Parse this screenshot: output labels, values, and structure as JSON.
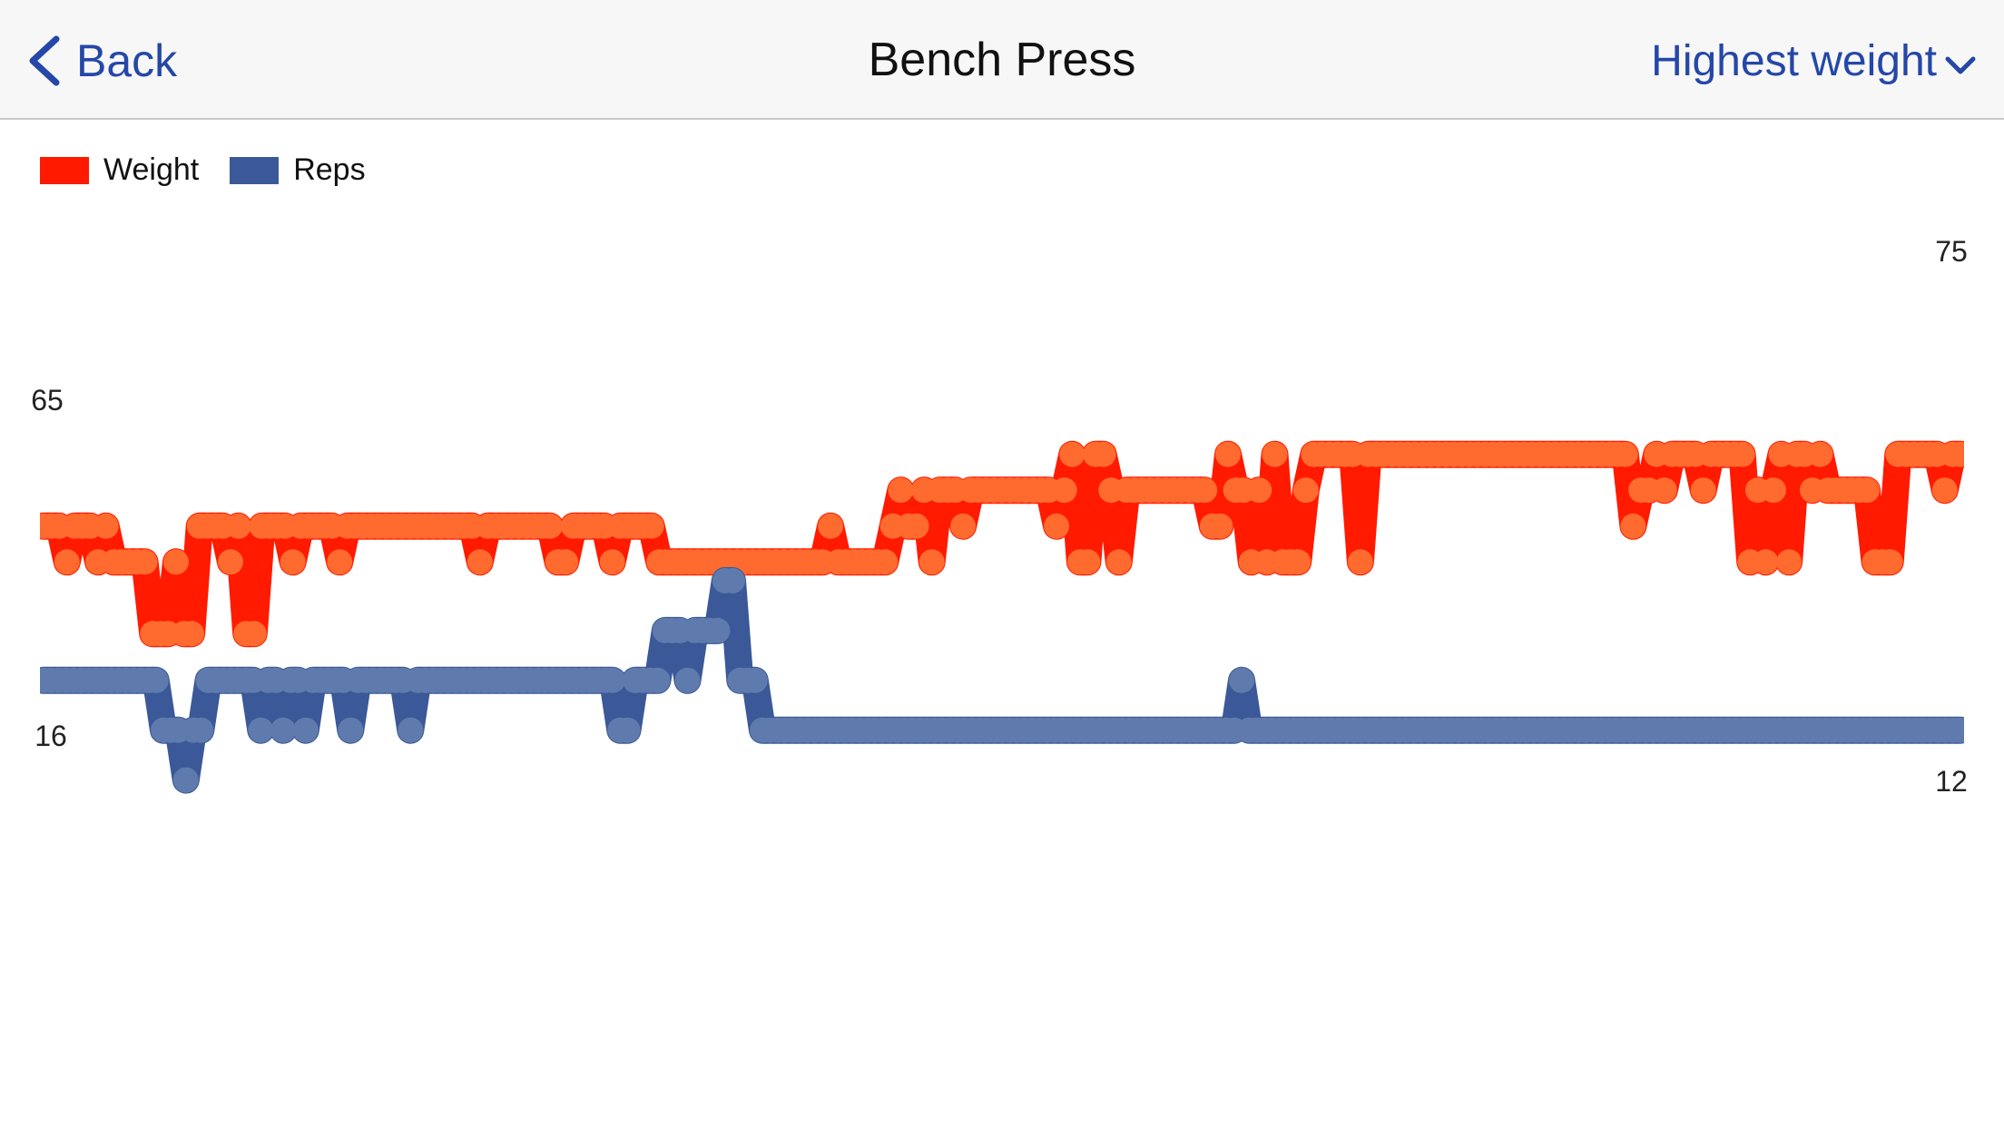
{
  "nav": {
    "back_label": "Back",
    "title": "Bench Press",
    "metric_label": "Highest weight"
  },
  "colors": {
    "accent": "#2547a8",
    "weight_fill": "#ff1a00",
    "weight_point": "#ff6a2e",
    "reps_fill": "#3b5998",
    "reps_point": "#5f7bad"
  },
  "chart_data": {
    "type": "area",
    "legend": [
      "Weight",
      "Reps"
    ],
    "legend_position": "top-left",
    "grid": false,
    "series": [
      {
        "name": "Weight",
        "axis_labels": [
          "65",
          "75"
        ],
        "ylim": [
          55,
          76
        ],
        "values": [
          65,
          65,
          65,
          64,
          65,
          65,
          65,
          64,
          65,
          64,
          64,
          64,
          64,
          64,
          62,
          62,
          62,
          64,
          62,
          62,
          65,
          65,
          65,
          65,
          64,
          65,
          62,
          62,
          65,
          65,
          65,
          65,
          64,
          65,
          65,
          65,
          65,
          65,
          64,
          65,
          65,
          65,
          65,
          65,
          65,
          65,
          65,
          65,
          65,
          65,
          65,
          65,
          65,
          65,
          65,
          65,
          64,
          65,
          65,
          65,
          65,
          65,
          65,
          65,
          65,
          65,
          64,
          64,
          65,
          65,
          65,
          65,
          65,
          64,
          65,
          65,
          65,
          65,
          65,
          64,
          64,
          64,
          64,
          64,
          64,
          64,
          64,
          64,
          64,
          64,
          64,
          64,
          64,
          64,
          64,
          64,
          64,
          64,
          64,
          64,
          64,
          65,
          64,
          64,
          64,
          64,
          64,
          64,
          64,
          65,
          66,
          65,
          65,
          66,
          64,
          66,
          66,
          66,
          65,
          66,
          66,
          66,
          66,
          66,
          66,
          66,
          66,
          66,
          66,
          66,
          65,
          66,
          67,
          64,
          64,
          67,
          67,
          66,
          64,
          66,
          66,
          66,
          66,
          66,
          66,
          66,
          66,
          66,
          66,
          66,
          65,
          65,
          67,
          66,
          66,
          64,
          66,
          64,
          67,
          64,
          64,
          64,
          66,
          67,
          67,
          67,
          67,
          67,
          67,
          64,
          67,
          67,
          67,
          67,
          67,
          67,
          67,
          67,
          67,
          67,
          67,
          67,
          67,
          67,
          67,
          67,
          67,
          67,
          67,
          67,
          67,
          67,
          67,
          67,
          67,
          67,
          67,
          67,
          67,
          67,
          67,
          67,
          67,
          67,
          65,
          66,
          66,
          67,
          66,
          67,
          67,
          67,
          67,
          66,
          67,
          67,
          67,
          67,
          67,
          64,
          66,
          64,
          66,
          67,
          64,
          67,
          67,
          66,
          67,
          66,
          66,
          66,
          66,
          66,
          66,
          64,
          64,
          64,
          67,
          67,
          67,
          67,
          67,
          67,
          66,
          67,
          67
        ]
      },
      {
        "name": "Reps",
        "axis_labels": [
          "16",
          "12"
        ],
        "ylim": [
          8,
          17
        ],
        "values": [
          15,
          15,
          15,
          15,
          15,
          15,
          15,
          15,
          15,
          15,
          15,
          15,
          15,
          15,
          15,
          15,
          14,
          14,
          14,
          13,
          14,
          14,
          15,
          15,
          15,
          15,
          15,
          15,
          15,
          14,
          15,
          15,
          14,
          15,
          15,
          14,
          15,
          15,
          15,
          15,
          15,
          14,
          15,
          15,
          15,
          15,
          15,
          15,
          15,
          14,
          15,
          15,
          15,
          15,
          15,
          15,
          15,
          15,
          15,
          15,
          15,
          15,
          15,
          15,
          15,
          15,
          15,
          15,
          15,
          15,
          15,
          15,
          15,
          15,
          15,
          15,
          15,
          14,
          14,
          15,
          15,
          15,
          15,
          16,
          16,
          16,
          15,
          16,
          16,
          16,
          16,
          17,
          17,
          15,
          15,
          15,
          14,
          14,
          14,
          14,
          14,
          14,
          14,
          14,
          14,
          14,
          14,
          14,
          14,
          14,
          14,
          14,
          14,
          14,
          14,
          14,
          14,
          14,
          14,
          14,
          14,
          14,
          14,
          14,
          14,
          14,
          14,
          14,
          14,
          14,
          14,
          14,
          14,
          14,
          14,
          14,
          14,
          14,
          14,
          14,
          14,
          14,
          14,
          14,
          14,
          14,
          14,
          14,
          14,
          14,
          14,
          14,
          14,
          14,
          14,
          14,
          14,
          14,
          14,
          14,
          15,
          14,
          14,
          14,
          14,
          14,
          14,
          14,
          14,
          14,
          14,
          14,
          14,
          14,
          14,
          14,
          14,
          14,
          14,
          14,
          14,
          14,
          14,
          14,
          14,
          14,
          14,
          14,
          14,
          14,
          14,
          14,
          14,
          14,
          14,
          14,
          14,
          14,
          14,
          14,
          14,
          14,
          14,
          14,
          14,
          14,
          14,
          14,
          14,
          14,
          14,
          14,
          14,
          14,
          14,
          14,
          14,
          14,
          14,
          14,
          14,
          14,
          14,
          14,
          14,
          14,
          14,
          14,
          14,
          14,
          14,
          14,
          14,
          14,
          14,
          14,
          14,
          14,
          14,
          14,
          14,
          14,
          14,
          14,
          14,
          14,
          14,
          14,
          14,
          14,
          14,
          14,
          14,
          14,
          14,
          14,
          14
        ]
      }
    ]
  }
}
